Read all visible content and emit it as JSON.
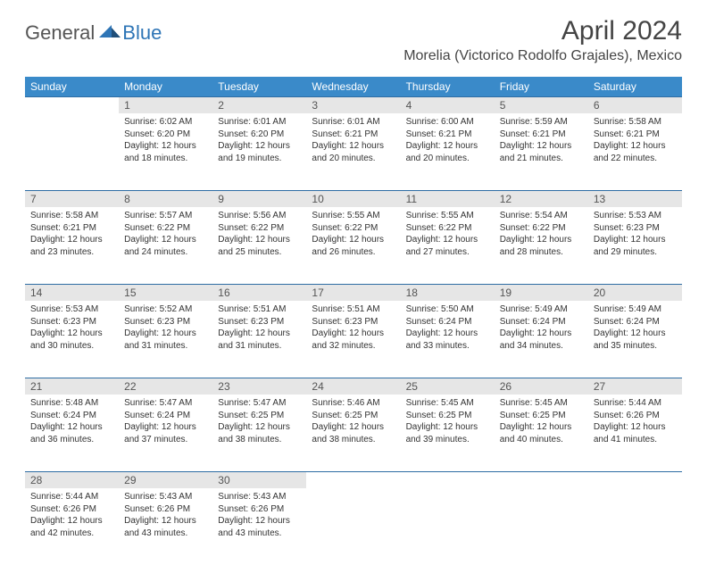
{
  "logo": {
    "gen": "General",
    "blue": "Blue"
  },
  "title": "April 2024",
  "location": "Morelia (Victorico Rodolfo Grajales), Mexico",
  "colors": {
    "header_bg": "#3a8ac9",
    "header_text": "#ffffff",
    "daynum_bg": "#e6e6e6",
    "row_border": "#2e6da4",
    "logo_gray": "#555555",
    "logo_blue": "#2e75b6"
  },
  "weekdays": [
    "Sunday",
    "Monday",
    "Tuesday",
    "Wednesday",
    "Thursday",
    "Friday",
    "Saturday"
  ],
  "weeks": [
    [
      null,
      {
        "n": "1",
        "sr": "Sunrise: 6:02 AM",
        "ss": "Sunset: 6:20 PM",
        "d1": "Daylight: 12 hours",
        "d2": "and 18 minutes."
      },
      {
        "n": "2",
        "sr": "Sunrise: 6:01 AM",
        "ss": "Sunset: 6:20 PM",
        "d1": "Daylight: 12 hours",
        "d2": "and 19 minutes."
      },
      {
        "n": "3",
        "sr": "Sunrise: 6:01 AM",
        "ss": "Sunset: 6:21 PM",
        "d1": "Daylight: 12 hours",
        "d2": "and 20 minutes."
      },
      {
        "n": "4",
        "sr": "Sunrise: 6:00 AM",
        "ss": "Sunset: 6:21 PM",
        "d1": "Daylight: 12 hours",
        "d2": "and 20 minutes."
      },
      {
        "n": "5",
        "sr": "Sunrise: 5:59 AM",
        "ss": "Sunset: 6:21 PM",
        "d1": "Daylight: 12 hours",
        "d2": "and 21 minutes."
      },
      {
        "n": "6",
        "sr": "Sunrise: 5:58 AM",
        "ss": "Sunset: 6:21 PM",
        "d1": "Daylight: 12 hours",
        "d2": "and 22 minutes."
      }
    ],
    [
      {
        "n": "7",
        "sr": "Sunrise: 5:58 AM",
        "ss": "Sunset: 6:21 PM",
        "d1": "Daylight: 12 hours",
        "d2": "and 23 minutes."
      },
      {
        "n": "8",
        "sr": "Sunrise: 5:57 AM",
        "ss": "Sunset: 6:22 PM",
        "d1": "Daylight: 12 hours",
        "d2": "and 24 minutes."
      },
      {
        "n": "9",
        "sr": "Sunrise: 5:56 AM",
        "ss": "Sunset: 6:22 PM",
        "d1": "Daylight: 12 hours",
        "d2": "and 25 minutes."
      },
      {
        "n": "10",
        "sr": "Sunrise: 5:55 AM",
        "ss": "Sunset: 6:22 PM",
        "d1": "Daylight: 12 hours",
        "d2": "and 26 minutes."
      },
      {
        "n": "11",
        "sr": "Sunrise: 5:55 AM",
        "ss": "Sunset: 6:22 PM",
        "d1": "Daylight: 12 hours",
        "d2": "and 27 minutes."
      },
      {
        "n": "12",
        "sr": "Sunrise: 5:54 AM",
        "ss": "Sunset: 6:22 PM",
        "d1": "Daylight: 12 hours",
        "d2": "and 28 minutes."
      },
      {
        "n": "13",
        "sr": "Sunrise: 5:53 AM",
        "ss": "Sunset: 6:23 PM",
        "d1": "Daylight: 12 hours",
        "d2": "and 29 minutes."
      }
    ],
    [
      {
        "n": "14",
        "sr": "Sunrise: 5:53 AM",
        "ss": "Sunset: 6:23 PM",
        "d1": "Daylight: 12 hours",
        "d2": "and 30 minutes."
      },
      {
        "n": "15",
        "sr": "Sunrise: 5:52 AM",
        "ss": "Sunset: 6:23 PM",
        "d1": "Daylight: 12 hours",
        "d2": "and 31 minutes."
      },
      {
        "n": "16",
        "sr": "Sunrise: 5:51 AM",
        "ss": "Sunset: 6:23 PM",
        "d1": "Daylight: 12 hours",
        "d2": "and 31 minutes."
      },
      {
        "n": "17",
        "sr": "Sunrise: 5:51 AM",
        "ss": "Sunset: 6:23 PM",
        "d1": "Daylight: 12 hours",
        "d2": "and 32 minutes."
      },
      {
        "n": "18",
        "sr": "Sunrise: 5:50 AM",
        "ss": "Sunset: 6:24 PM",
        "d1": "Daylight: 12 hours",
        "d2": "and 33 minutes."
      },
      {
        "n": "19",
        "sr": "Sunrise: 5:49 AM",
        "ss": "Sunset: 6:24 PM",
        "d1": "Daylight: 12 hours",
        "d2": "and 34 minutes."
      },
      {
        "n": "20",
        "sr": "Sunrise: 5:49 AM",
        "ss": "Sunset: 6:24 PM",
        "d1": "Daylight: 12 hours",
        "d2": "and 35 minutes."
      }
    ],
    [
      {
        "n": "21",
        "sr": "Sunrise: 5:48 AM",
        "ss": "Sunset: 6:24 PM",
        "d1": "Daylight: 12 hours",
        "d2": "and 36 minutes."
      },
      {
        "n": "22",
        "sr": "Sunrise: 5:47 AM",
        "ss": "Sunset: 6:24 PM",
        "d1": "Daylight: 12 hours",
        "d2": "and 37 minutes."
      },
      {
        "n": "23",
        "sr": "Sunrise: 5:47 AM",
        "ss": "Sunset: 6:25 PM",
        "d1": "Daylight: 12 hours",
        "d2": "and 38 minutes."
      },
      {
        "n": "24",
        "sr": "Sunrise: 5:46 AM",
        "ss": "Sunset: 6:25 PM",
        "d1": "Daylight: 12 hours",
        "d2": "and 38 minutes."
      },
      {
        "n": "25",
        "sr": "Sunrise: 5:45 AM",
        "ss": "Sunset: 6:25 PM",
        "d1": "Daylight: 12 hours",
        "d2": "and 39 minutes."
      },
      {
        "n": "26",
        "sr": "Sunrise: 5:45 AM",
        "ss": "Sunset: 6:25 PM",
        "d1": "Daylight: 12 hours",
        "d2": "and 40 minutes."
      },
      {
        "n": "27",
        "sr": "Sunrise: 5:44 AM",
        "ss": "Sunset: 6:26 PM",
        "d1": "Daylight: 12 hours",
        "d2": "and 41 minutes."
      }
    ],
    [
      {
        "n": "28",
        "sr": "Sunrise: 5:44 AM",
        "ss": "Sunset: 6:26 PM",
        "d1": "Daylight: 12 hours",
        "d2": "and 42 minutes."
      },
      {
        "n": "29",
        "sr": "Sunrise: 5:43 AM",
        "ss": "Sunset: 6:26 PM",
        "d1": "Daylight: 12 hours",
        "d2": "and 43 minutes."
      },
      {
        "n": "30",
        "sr": "Sunrise: 5:43 AM",
        "ss": "Sunset: 6:26 PM",
        "d1": "Daylight: 12 hours",
        "d2": "and 43 minutes."
      },
      null,
      null,
      null,
      null
    ]
  ]
}
